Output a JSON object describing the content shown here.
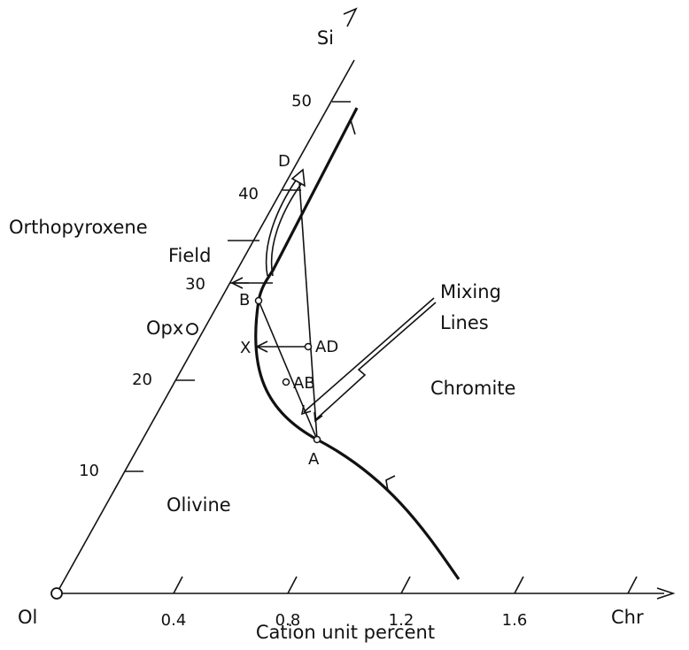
{
  "labels": {
    "si": "Si",
    "ol": "Ol",
    "opx": "Opx",
    "chr": "Chr",
    "x_axis_title": "Cation unit percent",
    "field_line_1": "Orthopyroxene",
    "field_line_2": "Field",
    "mixing_line_1": "Mixing",
    "mixing_line_2": "Lines",
    "chromite": "Chromite",
    "olivine": "Olivine"
  },
  "x_ticks": [
    "0.4",
    "0.8",
    "1.2",
    "1.6"
  ],
  "y_ticks": [
    "10",
    "20",
    "30",
    "40",
    "50"
  ],
  "points": {
    "a": "A",
    "b": "B",
    "x": "X",
    "ab": "AB",
    "ad": "AD",
    "d": "D"
  }
}
